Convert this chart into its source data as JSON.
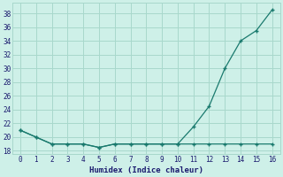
{
  "x": [
    0,
    1,
    2,
    3,
    4,
    5,
    6,
    7,
    8,
    9,
    10,
    11,
    12,
    13,
    14,
    15,
    16
  ],
  "y_bottom": [
    21,
    20,
    19,
    19,
    19,
    18.5,
    19,
    19,
    19,
    19,
    19,
    19,
    19,
    19,
    19,
    19,
    19
  ],
  "y_top": [
    21,
    20,
    19,
    19,
    19,
    18.5,
    19,
    19,
    19,
    19,
    19,
    21.5,
    24.5,
    30,
    34,
    35.5,
    38.5
  ],
  "line_color": "#1a7a6e",
  "bg_color": "#cef0e8",
  "grid_color": "#a8d8cc",
  "xlabel": "Humidex (Indice chaleur)",
  "yticks": [
    18,
    20,
    22,
    24,
    26,
    28,
    30,
    32,
    34,
    36,
    38
  ],
  "xticks": [
    0,
    1,
    2,
    3,
    4,
    5,
    6,
    7,
    8,
    9,
    10,
    11,
    12,
    13,
    14,
    15,
    16
  ],
  "ylim": [
    17.5,
    39.5
  ],
  "xlim": [
    -0.5,
    16.5
  ]
}
